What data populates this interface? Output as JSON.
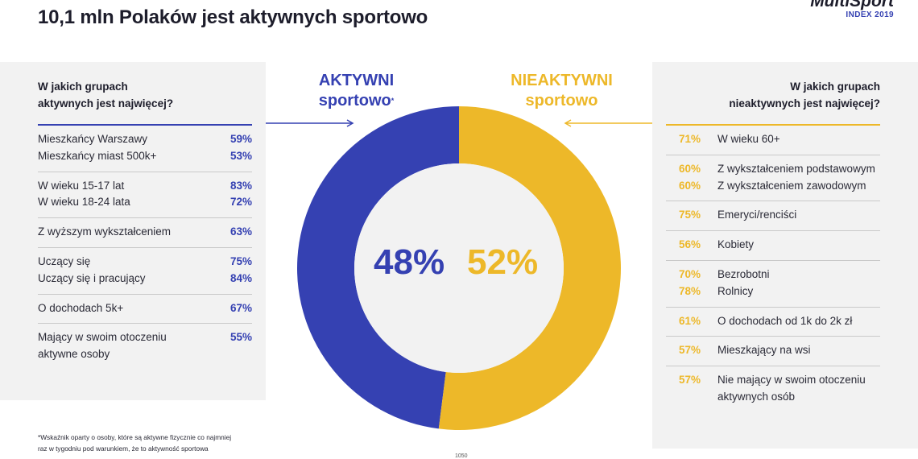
{
  "header": {
    "title": "10,1 mln Polaków jest aktywnych sportowo",
    "brand_name": "MultiSport",
    "brand_sub": "INDEX 2019"
  },
  "left_panel": {
    "heading_line1": "W jakich grupach",
    "heading_line2": "aktywnych jest najwięcej?",
    "groups": [
      {
        "rows": [
          {
            "label": "Mieszkańcy Warszawy",
            "pct": "59%"
          },
          {
            "label": "Mieszkańcy miast 500k+",
            "pct": "53%"
          }
        ]
      },
      {
        "rows": [
          {
            "label": "W wieku 15-17 lat",
            "pct": "83%"
          },
          {
            "label": "W wieku 18-24 lata",
            "pct": "72%"
          }
        ]
      },
      {
        "rows": [
          {
            "label": "Z wyższym wykształceniem",
            "pct": "63%"
          }
        ]
      },
      {
        "rows": [
          {
            "label": "Uczący się",
            "pct": "75%"
          },
          {
            "label": "Uczący się i pracujący",
            "pct": "84%"
          }
        ]
      },
      {
        "rows": [
          {
            "label": "O dochodach 5k+",
            "pct": "67%"
          }
        ]
      },
      {
        "rows": [
          {
            "label": "Mający w swoim otoczeniu",
            "pct": "55%"
          },
          {
            "label": "aktywne osoby",
            "pct": ""
          }
        ]
      }
    ]
  },
  "right_panel": {
    "heading_line1": "W jakich grupach",
    "heading_line2": "nieaktywnych jest najwięcej?",
    "groups": [
      {
        "rows": [
          {
            "label": "W wieku 60+",
            "pct": "71%"
          }
        ]
      },
      {
        "rows": [
          {
            "label": "Z wykształceniem podstawowym",
            "pct": "60%"
          },
          {
            "label": "Z wykształceniem zawodowym",
            "pct": "60%"
          }
        ]
      },
      {
        "rows": [
          {
            "label": "Emeryci/renciści",
            "pct": "75%"
          }
        ]
      },
      {
        "rows": [
          {
            "label": "Kobiety",
            "pct": "56%"
          }
        ]
      },
      {
        "rows": [
          {
            "label": "Bezrobotni",
            "pct": "70%"
          },
          {
            "label": "Rolnicy",
            "pct": "78%"
          }
        ]
      },
      {
        "rows": [
          {
            "label": "O dochodach od 1k do 2k zł",
            "pct": "61%"
          }
        ]
      },
      {
        "rows": [
          {
            "label": "Mieszkający na wsi",
            "pct": "57%"
          }
        ]
      },
      {
        "rows": [
          {
            "label": "Nie mający w swoim otoczeniu",
            "pct": "57%"
          },
          {
            "label": "aktywnych osób",
            "pct": ""
          }
        ]
      }
    ]
  },
  "chart_data": {
    "type": "pie",
    "donut": true,
    "categories": [
      "AKTYWNI sportowo*",
      "NIEAKTYWNI sportowo"
    ],
    "values": [
      48,
      52
    ],
    "value_labels": [
      "48%",
      "52%"
    ],
    "title": "",
    "legend": "above-segments"
  },
  "chart_labels": {
    "active_line1": "AKTYWNI",
    "active_line2": "sportowo",
    "active_mark": "*",
    "inactive_line1": "NIEAKTYWNI",
    "inactive_line2": "sportowo"
  },
  "colors": {
    "active": "#3541b2",
    "inactive": "#edb829",
    "panel_bg": "#f2f2f2",
    "hole": "#f2f2f2"
  },
  "footnote": {
    "line1": "*Wskaźnik oparty o osoby, które są aktywne fizycznie co najmniej",
    "line2": "raz w tygodniu pod warunkiem, że to aktywność sportowa"
  },
  "page_number": "1050"
}
